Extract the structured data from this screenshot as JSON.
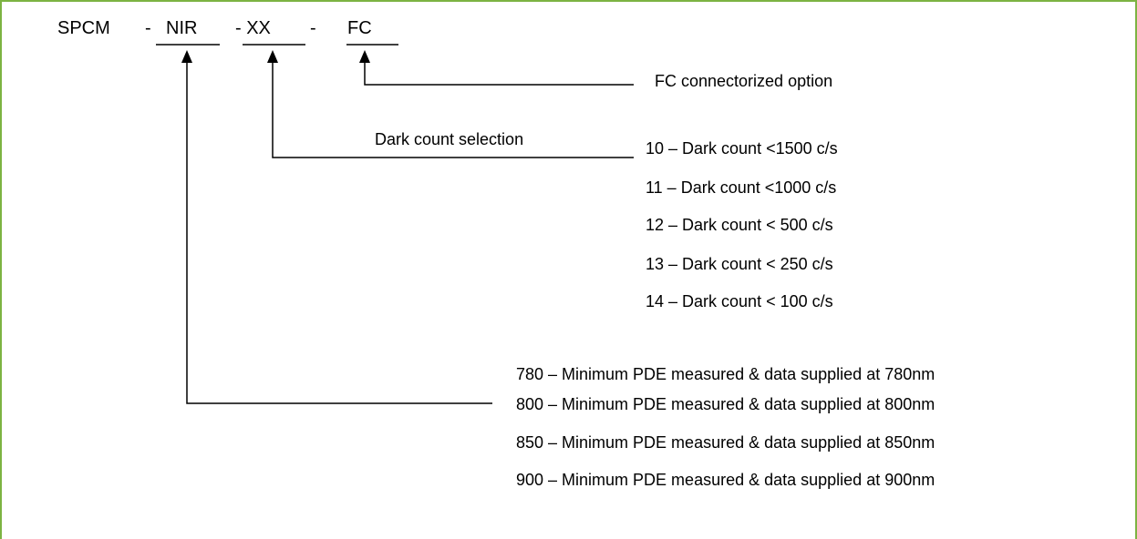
{
  "part_number": {
    "prefix": "SPCM",
    "sep1": "-",
    "seg_nir": "NIR",
    "seg_xx": "- XX",
    "sep2": "-",
    "seg_fc": "FC"
  },
  "fc_option": {
    "label": "FC connectorized option"
  },
  "dark_count": {
    "heading": "Dark count selection",
    "options": [
      "10 – Dark count <1500 c/s",
      "11 – Dark count <1000 c/s",
      "12 – Dark count < 500 c/s",
      "13 – Dark count < 250 c/s",
      "14 – Dark count < 100 c/s"
    ]
  },
  "pde_options": [
    "780 – Minimum PDE measured & data supplied at 780nm",
    "800 – Minimum PDE measured & data supplied at 800nm",
    "850 – Minimum PDE measured & data supplied at 850nm",
    "900 – Minimum PDE measured & data supplied at 900nm"
  ],
  "colors": {
    "border": "#7cb342",
    "ink": "#000000"
  }
}
